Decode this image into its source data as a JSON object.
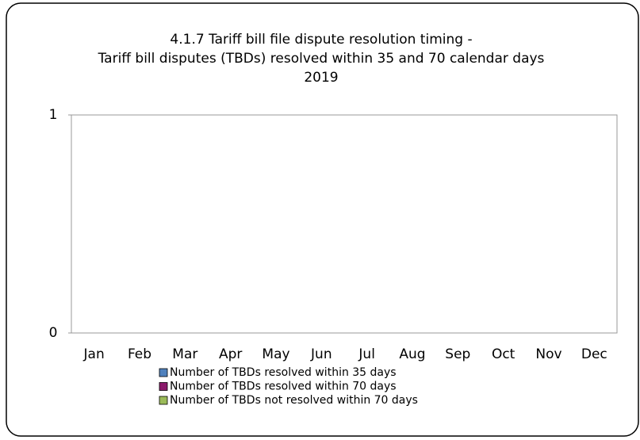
{
  "chart_data": {
    "type": "bar",
    "title": [
      "4.1.7 Tariff bill file dispute resolution timing -",
      "Tariff bill disputes (TBDs) resolved within 35 and 70 calendar days",
      "2019"
    ],
    "categories": [
      "Jan",
      "Feb",
      "Mar",
      "Apr",
      "May",
      "Jun",
      "Jul",
      "Aug",
      "Sep",
      "Oct",
      "Nov",
      "Dec"
    ],
    "series": [
      {
        "name": "Number of TBDs resolved within 35 days",
        "color": "#4f81bd",
        "values": [
          0,
          0,
          0,
          0,
          0,
          0,
          0,
          0,
          0,
          0,
          0,
          0
        ]
      },
      {
        "name": "Number of TBDs  resolved within 70 days",
        "color": "#8b1a6b",
        "values": [
          0,
          0,
          0,
          0,
          0,
          0,
          0,
          0,
          0,
          0,
          0,
          0
        ]
      },
      {
        "name": "Number of TBDs not resolved within 70 days",
        "color": "#9bbb59",
        "values": [
          0,
          0,
          0,
          0,
          0,
          0,
          0,
          0,
          0,
          0,
          0,
          0
        ]
      }
    ],
    "ylim": [
      0,
      1
    ],
    "yticks": [
      0,
      1
    ],
    "grid": false
  }
}
